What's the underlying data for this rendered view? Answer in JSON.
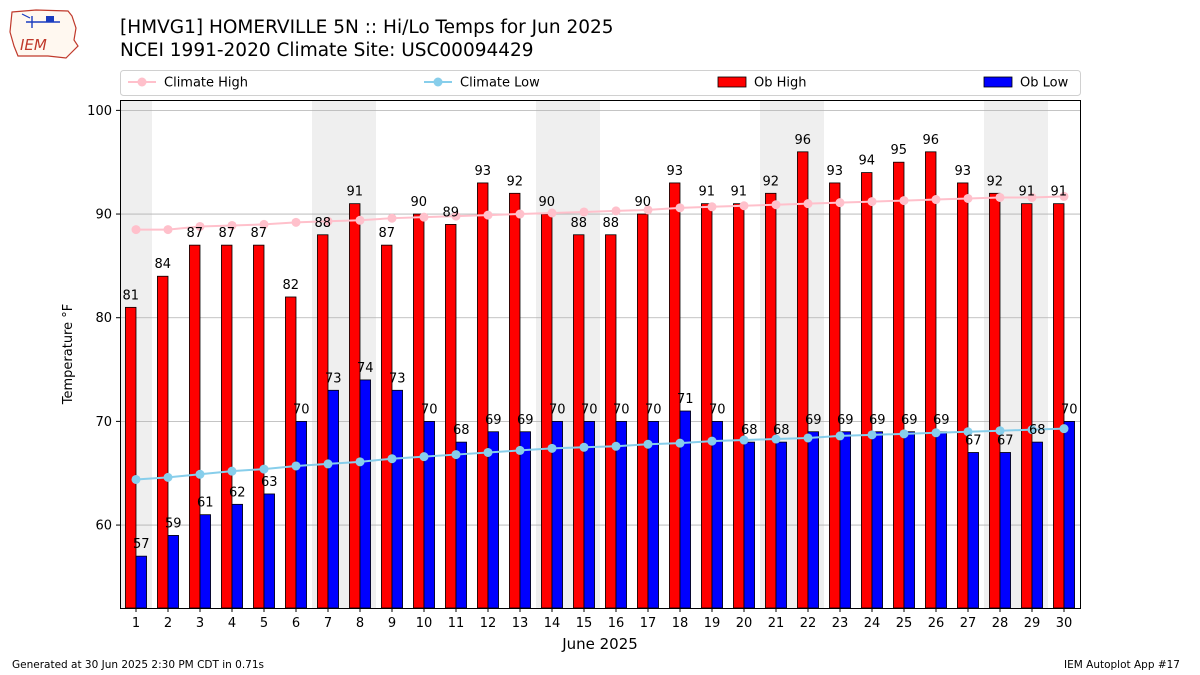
{
  "header": {
    "title_line1": "[HMVG1] HOMERVILLE 5N :: Hi/Lo Temps for Jun 2025",
    "title_line2": "NCEI 1991-2020 Climate Site: USC00094429"
  },
  "logo": {
    "text": "IEM",
    "icon": "iem-logo-icon"
  },
  "footer": {
    "left": "Generated at 30 Jun 2025 2:30 PM CDT in 0.71s",
    "right": "IEM Autoplot App #17"
  },
  "colors": {
    "ob_high": "#ff0000",
    "ob_low": "#0000ff",
    "climate_high": "#ffc0cb",
    "climate_low": "#87ceeb",
    "weekend_shade": "#efefef",
    "grid": "#b0b0b0"
  },
  "chart_data": {
    "type": "bar",
    "xlabel": "June 2025",
    "ylabel": "Temperature °F",
    "ylim": [
      52,
      101
    ],
    "yticks": [
      60,
      70,
      80,
      90,
      100
    ],
    "grid": "horizontal",
    "legend_placement": "top",
    "categories": [
      "1",
      "2",
      "3",
      "4",
      "5",
      "6",
      "7",
      "8",
      "9",
      "10",
      "11",
      "12",
      "13",
      "14",
      "15",
      "16",
      "17",
      "18",
      "19",
      "20",
      "21",
      "22",
      "23",
      "24",
      "25",
      "26",
      "27",
      "28",
      "29",
      "30"
    ],
    "shaded_days": [
      1,
      7,
      8,
      14,
      15,
      21,
      22,
      28,
      29
    ],
    "series": [
      {
        "name": "Climate High",
        "kind": "line",
        "values": [
          88.5,
          88.5,
          88.8,
          88.9,
          89.0,
          89.2,
          89.3,
          89.4,
          89.6,
          89.7,
          89.8,
          89.9,
          90.0,
          90.1,
          90.2,
          90.3,
          90.4,
          90.6,
          90.7,
          90.8,
          90.9,
          91.0,
          91.1,
          91.2,
          91.3,
          91.4,
          91.5,
          91.6,
          91.6,
          91.7
        ]
      },
      {
        "name": "Climate Low",
        "kind": "line",
        "values": [
          64.4,
          64.6,
          64.9,
          65.2,
          65.4,
          65.7,
          65.9,
          66.1,
          66.4,
          66.6,
          66.8,
          67.0,
          67.2,
          67.4,
          67.5,
          67.6,
          67.8,
          67.9,
          68.1,
          68.2,
          68.3,
          68.4,
          68.6,
          68.7,
          68.8,
          68.9,
          69.0,
          69.1,
          69.2,
          69.3
        ]
      },
      {
        "name": "Ob High",
        "kind": "bar",
        "values": [
          81,
          84,
          87,
          87,
          87,
          82,
          88,
          91,
          87,
          90,
          89,
          93,
          92,
          90,
          88,
          88,
          90,
          93,
          91,
          91,
          92,
          96,
          93,
          94,
          95,
          96,
          93,
          92,
          91,
          91
        ]
      },
      {
        "name": "Ob Low",
        "kind": "bar",
        "values": [
          57,
          59,
          61,
          62,
          63,
          70,
          73,
          74,
          73,
          70,
          68,
          69,
          69,
          70,
          70,
          70,
          70,
          71,
          70,
          68,
          68,
          69,
          69,
          69,
          69,
          69,
          67,
          67,
          68,
          70
        ]
      }
    ]
  }
}
